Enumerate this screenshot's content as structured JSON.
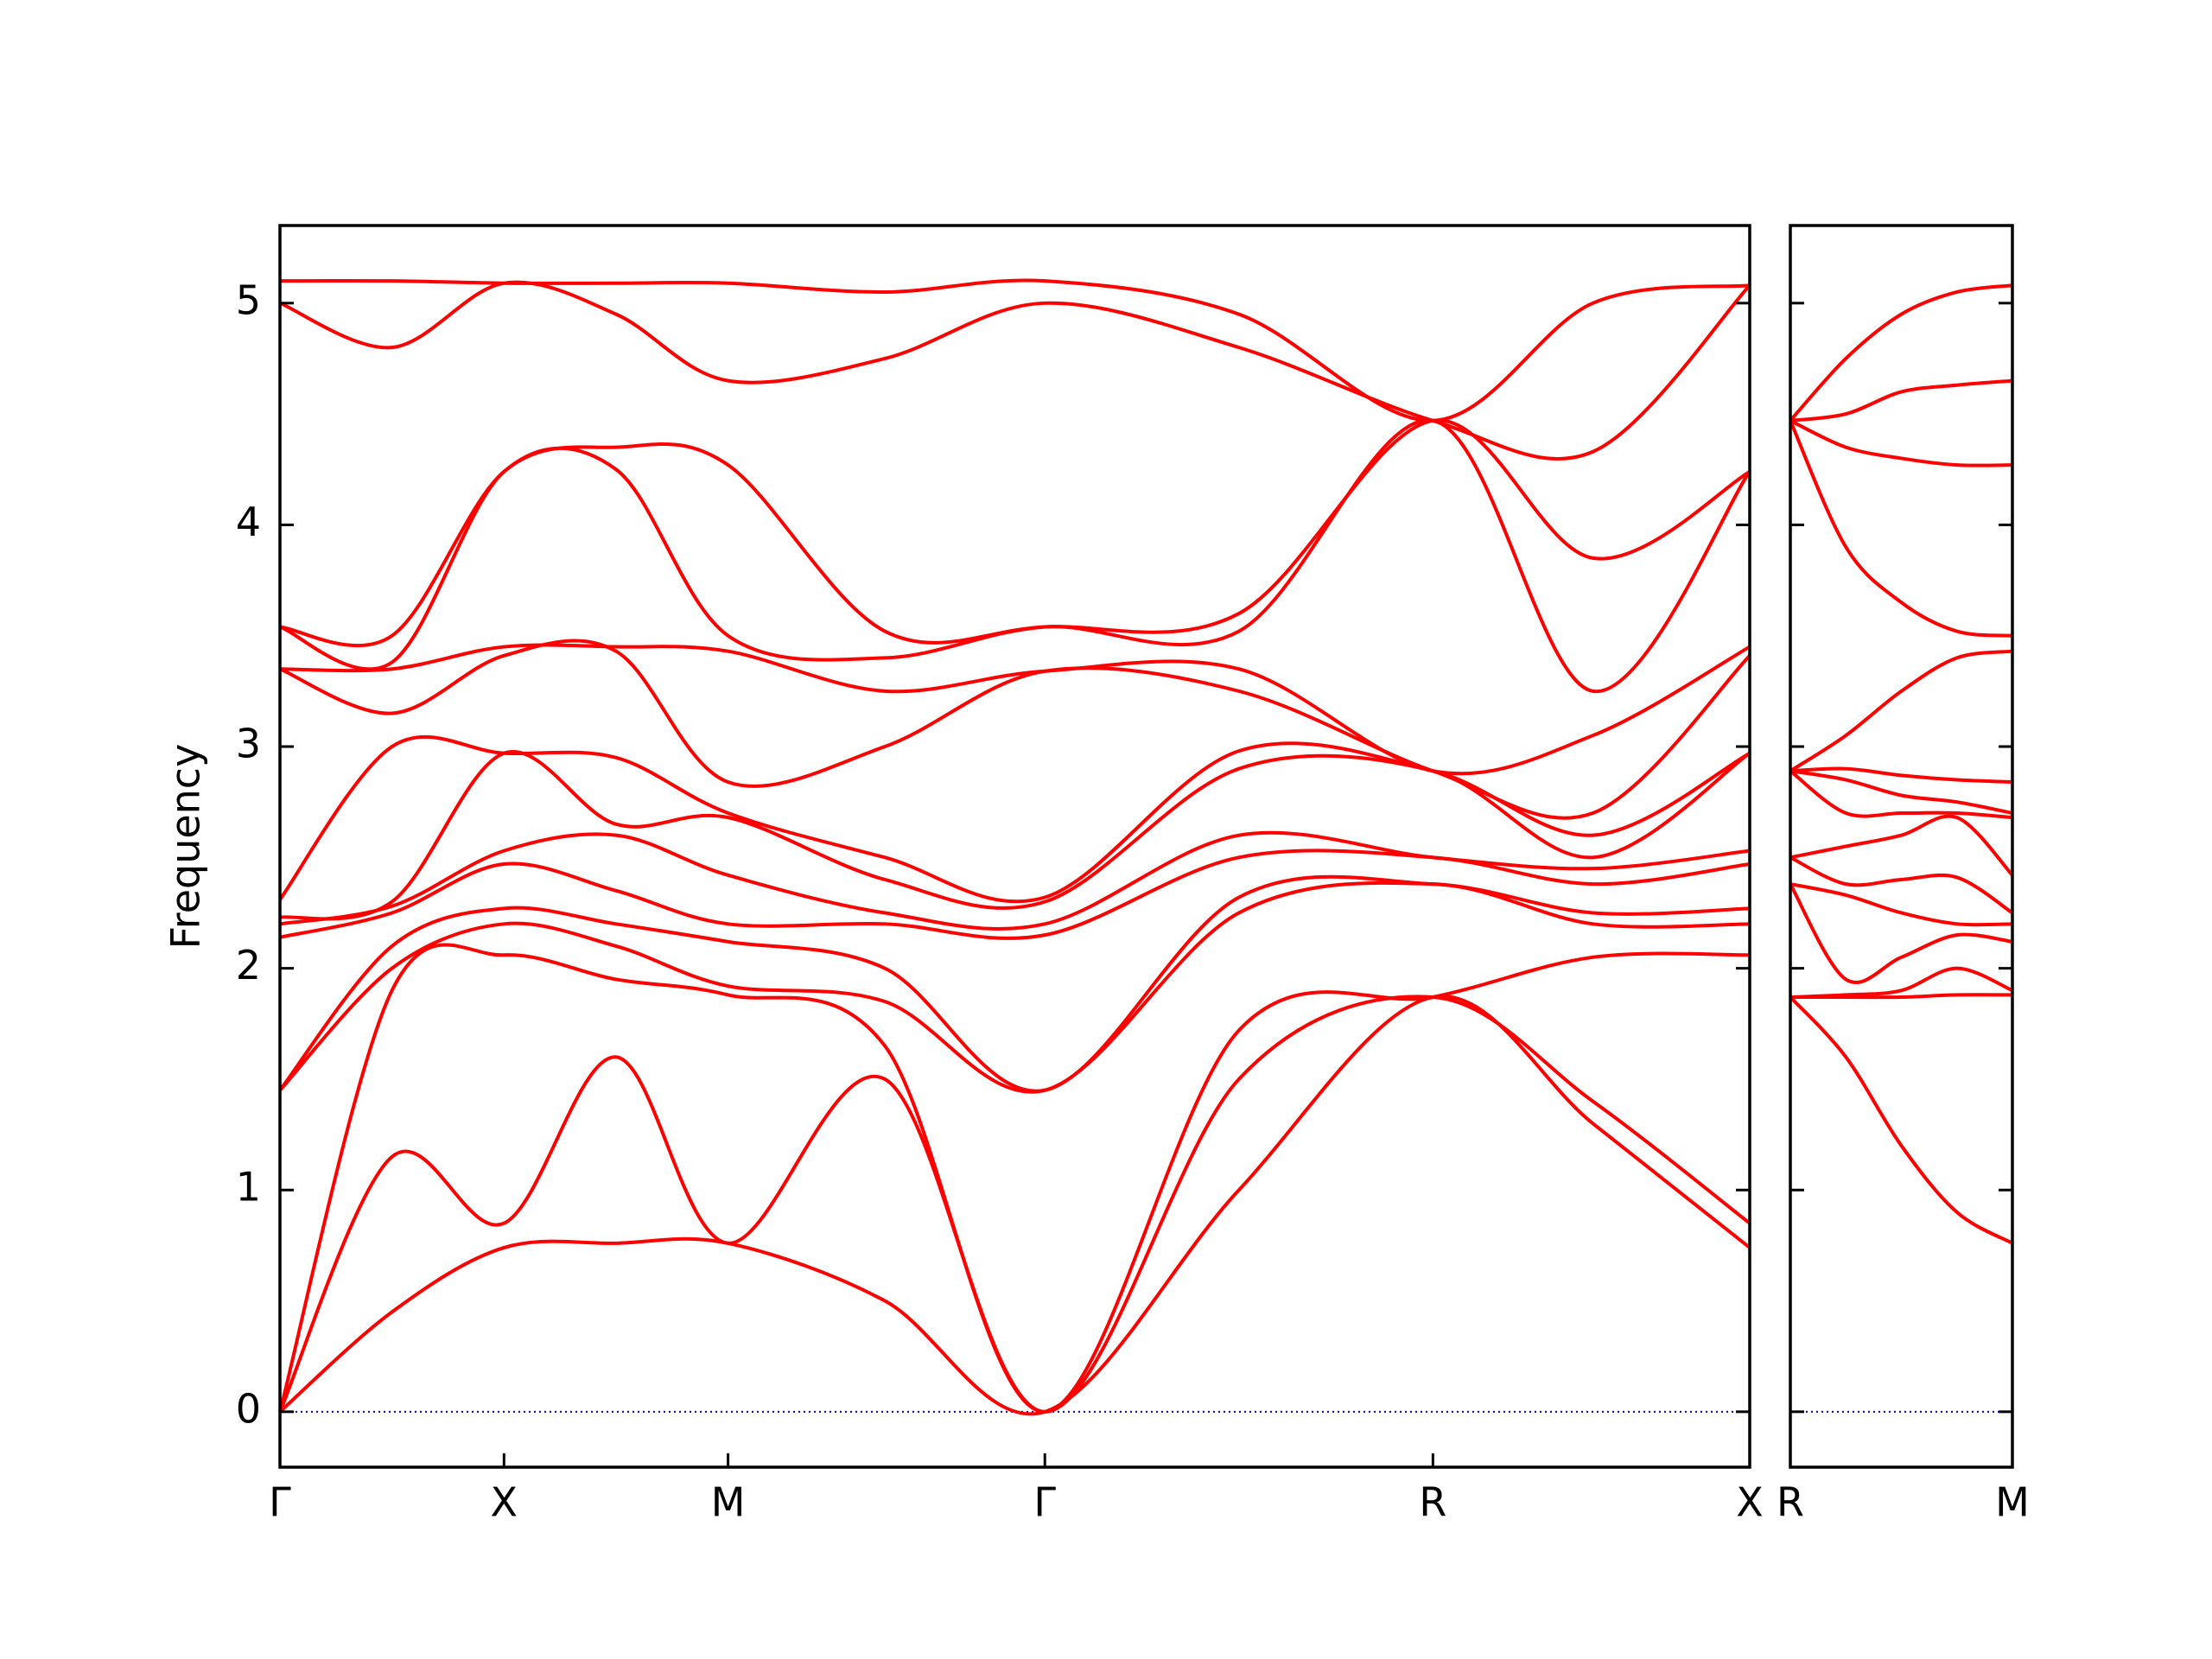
{
  "chart_data": [
    {
      "type": "line",
      "ylabel": "Frequency",
      "color": "#ff0000",
      "zero_line_color": "#0000cc",
      "x": [
        0,
        0.25,
        0.5,
        0.75,
        1.0,
        1.35,
        1.707,
        2.14,
        2.573,
        2.93,
        3.28
      ],
      "xlim": [
        0,
        3.28
      ],
      "ylim": [
        -0.25,
        5.35
      ],
      "xticks": [
        {
          "value": 0,
          "label": "Γ"
        },
        {
          "value": 0.5,
          "label": "X"
        },
        {
          "value": 1.0,
          "label": "M"
        },
        {
          "value": 1.707,
          "label": "Γ"
        },
        {
          "value": 2.573,
          "label": "R"
        },
        {
          "value": 3.28,
          "label": "X"
        }
      ],
      "yticks": [
        0,
        1,
        2,
        3,
        4,
        5
      ],
      "ytick_labels": true,
      "series": [
        {
          "values": [
            0,
            0.45,
            0.74,
            0.76,
            0.76,
            0.5,
            0,
            1.0,
            1.87,
            1.3,
            0.74
          ]
        },
        {
          "values": [
            0,
            1.15,
            0.85,
            1.6,
            0.76,
            1.5,
            0,
            1.5,
            1.87,
            1.4,
            0.85
          ]
        },
        {
          "values": [
            0,
            1.9,
            2.06,
            1.95,
            1.88,
            1.65,
            0,
            1.72,
            1.87,
            2.05,
            2.06
          ]
        },
        {
          "values": [
            1.45,
            2.0,
            2.2,
            2.1,
            1.92,
            1.85,
            1.45,
            2.25,
            2.38,
            2.2,
            2.2
          ]
        },
        {
          "values": [
            1.45,
            2.1,
            2.27,
            2.2,
            2.12,
            2.0,
            1.45,
            2.32,
            2.38,
            2.25,
            2.27
          ]
        },
        {
          "values": [
            2.14,
            2.25,
            2.47,
            2.35,
            2.2,
            2.2,
            2.15,
            2.5,
            2.5,
            2.38,
            2.47
          ]
        },
        {
          "values": [
            2.2,
            2.28,
            2.53,
            2.6,
            2.42,
            2.25,
            2.2,
            2.6,
            2.5,
            2.45,
            2.53
          ]
        },
        {
          "values": [
            2.23,
            2.3,
            2.97,
            2.65,
            2.68,
            2.4,
            2.3,
            2.9,
            2.89,
            2.5,
            2.97
          ]
        },
        {
          "values": [
            2.31,
            3.0,
            2.97,
            2.95,
            2.7,
            2.5,
            2.32,
            2.98,
            2.89,
            2.6,
            2.97
          ]
        },
        {
          "values": [
            3.35,
            3.15,
            3.41,
            3.43,
            2.84,
            3.0,
            3.34,
            3.25,
            2.89,
            2.7,
            3.41
          ]
        },
        {
          "values": [
            3.35,
            3.35,
            3.45,
            3.45,
            3.43,
            3.25,
            3.34,
            3.35,
            2.89,
            3.05,
            3.45
          ]
        },
        {
          "values": [
            3.54,
            3.38,
            4.24,
            4.25,
            3.5,
            3.4,
            3.54,
            3.52,
            4.47,
            3.25,
            4.24
          ]
        },
        {
          "values": [
            3.54,
            3.5,
            4.24,
            4.35,
            4.27,
            3.52,
            3.54,
            3.6,
            4.47,
            3.85,
            4.24
          ]
        },
        {
          "values": [
            5.0,
            4.8,
            5.09,
            4.95,
            4.65,
            4.75,
            5.0,
            4.8,
            4.47,
            4.33,
            5.08
          ]
        },
        {
          "values": [
            5.1,
            5.1,
            5.09,
            5.09,
            5.09,
            5.05,
            5.1,
            4.95,
            4.47,
            5.0,
            5.08
          ]
        }
      ]
    },
    {
      "type": "line",
      "color": "#ff0000",
      "zero_line_color": "#0000cc",
      "x": [
        3.28,
        3.405,
        3.53,
        3.655,
        3.78
      ],
      "xlim": [
        3.28,
        3.78
      ],
      "ylim": [
        -0.25,
        5.35
      ],
      "xticks": [
        {
          "value": 3.28,
          "label": "R"
        },
        {
          "value": 3.78,
          "label": "M"
        }
      ],
      "yticks": [
        0,
        1,
        2,
        3,
        4,
        5
      ],
      "ytick_labels": false,
      "series": [
        {
          "values": [
            1.87,
            1.6,
            1.2,
            0.9,
            0.76
          ]
        },
        {
          "values": [
            1.87,
            1.87,
            1.87,
            1.88,
            1.88
          ]
        },
        {
          "values": [
            1.87,
            1.88,
            1.9,
            2.0,
            1.9
          ]
        },
        {
          "values": [
            2.38,
            1.95,
            2.05,
            2.15,
            2.12
          ]
        },
        {
          "values": [
            2.38,
            2.33,
            2.25,
            2.2,
            2.2
          ]
        },
        {
          "values": [
            2.5,
            2.38,
            2.4,
            2.41,
            2.25
          ]
        },
        {
          "values": [
            2.5,
            2.55,
            2.6,
            2.68,
            2.42
          ]
        },
        {
          "values": [
            2.89,
            2.7,
            2.7,
            2.7,
            2.68
          ]
        },
        {
          "values": [
            2.89,
            2.85,
            2.78,
            2.75,
            2.7
          ]
        },
        {
          "values": [
            2.89,
            2.9,
            2.87,
            2.85,
            2.84
          ]
        },
        {
          "values": [
            2.89,
            3.05,
            3.25,
            3.4,
            3.43
          ]
        },
        {
          "values": [
            4.47,
            3.9,
            3.65,
            3.52,
            3.5
          ]
        },
        {
          "values": [
            4.47,
            4.35,
            4.3,
            4.27,
            4.27
          ]
        },
        {
          "values": [
            4.47,
            4.5,
            4.6,
            4.63,
            4.65
          ]
        },
        {
          "values": [
            4.47,
            4.75,
            4.95,
            5.05,
            5.08
          ]
        }
      ]
    }
  ]
}
